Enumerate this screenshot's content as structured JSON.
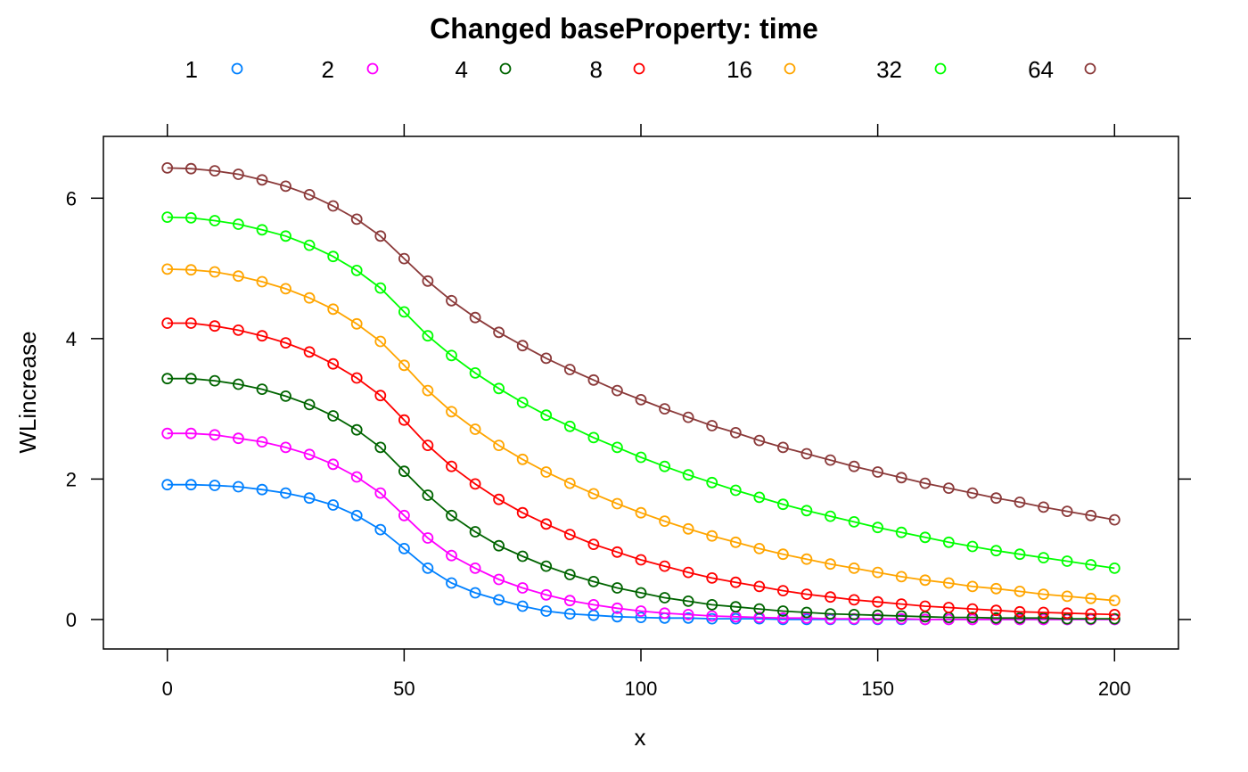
{
  "chart_data": {
    "type": "line",
    "title": "Changed baseProperty: time",
    "xlabel": "x",
    "ylabel": "WLincrease",
    "xlim": [
      -13.5,
      213.5
    ],
    "ylim": [
      -0.42,
      6.88
    ],
    "x_ticks": [
      0,
      50,
      100,
      150,
      200
    ],
    "y_ticks": [
      0,
      2,
      4,
      6
    ],
    "grid": false,
    "legend_position": "top",
    "x": [
      0,
      5,
      10,
      15,
      20,
      25,
      30,
      35,
      40,
      45,
      50,
      55,
      60,
      65,
      70,
      75,
      80,
      85,
      90,
      95,
      100,
      105,
      110,
      115,
      120,
      125,
      130,
      135,
      140,
      145,
      150,
      155,
      160,
      165,
      170,
      175,
      180,
      185,
      190,
      195,
      200
    ],
    "series": [
      {
        "name": "1",
        "color": "#0080ff",
        "values": [
          1.92,
          1.92,
          1.91,
          1.89,
          1.85,
          1.8,
          1.73,
          1.63,
          1.48,
          1.28,
          1.01,
          0.73,
          0.52,
          0.38,
          0.28,
          0.19,
          0.12,
          0.08,
          0.06,
          0.04,
          0.03,
          0.02,
          0.02,
          0.01,
          0.01,
          0.01,
          0.0,
          0.0,
          0.0,
          0.0,
          0.0,
          0.0,
          0.0,
          0.0,
          0.0,
          0.0,
          0.0,
          0.0,
          0.0,
          0.0,
          0.0
        ]
      },
      {
        "name": "2",
        "color": "#ff00ff",
        "values": [
          2.65,
          2.65,
          2.63,
          2.58,
          2.53,
          2.45,
          2.35,
          2.21,
          2.03,
          1.8,
          1.48,
          1.16,
          0.91,
          0.73,
          0.57,
          0.45,
          0.35,
          0.27,
          0.21,
          0.16,
          0.12,
          0.09,
          0.07,
          0.05,
          0.04,
          0.03,
          0.02,
          0.02,
          0.01,
          0.01,
          0.01,
          0.01,
          0.0,
          0.0,
          0.0,
          0.0,
          0.0,
          0.0,
          0.0,
          0.0,
          0.0
        ]
      },
      {
        "name": "4",
        "color": "#006400",
        "values": [
          3.43,
          3.43,
          3.4,
          3.35,
          3.28,
          3.18,
          3.06,
          2.9,
          2.7,
          2.45,
          2.11,
          1.77,
          1.48,
          1.25,
          1.05,
          0.9,
          0.76,
          0.64,
          0.54,
          0.45,
          0.38,
          0.31,
          0.26,
          0.21,
          0.18,
          0.15,
          0.12,
          0.1,
          0.08,
          0.07,
          0.06,
          0.05,
          0.04,
          0.03,
          0.03,
          0.02,
          0.02,
          0.02,
          0.01,
          0.01,
          0.01
        ]
      },
      {
        "name": "8",
        "color": "#ff0000",
        "values": [
          4.22,
          4.22,
          4.18,
          4.12,
          4.04,
          3.94,
          3.81,
          3.64,
          3.44,
          3.19,
          2.84,
          2.48,
          2.18,
          1.93,
          1.71,
          1.52,
          1.36,
          1.21,
          1.07,
          0.96,
          0.85,
          0.76,
          0.67,
          0.59,
          0.53,
          0.47,
          0.41,
          0.36,
          0.32,
          0.28,
          0.25,
          0.22,
          0.19,
          0.17,
          0.15,
          0.13,
          0.11,
          0.1,
          0.09,
          0.08,
          0.07
        ]
      },
      {
        "name": "16",
        "color": "#ffa500",
        "values": [
          4.99,
          4.98,
          4.95,
          4.89,
          4.81,
          4.71,
          4.58,
          4.42,
          4.21,
          3.96,
          3.62,
          3.26,
          2.96,
          2.71,
          2.48,
          2.28,
          2.1,
          1.94,
          1.79,
          1.65,
          1.52,
          1.4,
          1.29,
          1.19,
          1.1,
          1.01,
          0.93,
          0.86,
          0.79,
          0.73,
          0.67,
          0.61,
          0.56,
          0.52,
          0.47,
          0.44,
          0.4,
          0.36,
          0.33,
          0.3,
          0.27
        ]
      },
      {
        "name": "32",
        "color": "#00ff00",
        "values": [
          5.73,
          5.72,
          5.68,
          5.63,
          5.55,
          5.46,
          5.33,
          5.17,
          4.97,
          4.72,
          4.38,
          4.04,
          3.76,
          3.51,
          3.29,
          3.09,
          2.91,
          2.75,
          2.59,
          2.45,
          2.31,
          2.18,
          2.06,
          1.95,
          1.84,
          1.74,
          1.64,
          1.55,
          1.47,
          1.39,
          1.31,
          1.24,
          1.17,
          1.1,
          1.04,
          0.98,
          0.93,
          0.88,
          0.83,
          0.78,
          0.73
        ]
      },
      {
        "name": "64",
        "color": "#8b3a3a",
        "values": [
          6.43,
          6.42,
          6.39,
          6.34,
          6.26,
          6.17,
          6.05,
          5.89,
          5.7,
          5.46,
          5.14,
          4.82,
          4.54,
          4.3,
          4.09,
          3.9,
          3.72,
          3.56,
          3.41,
          3.26,
          3.13,
          3.0,
          2.88,
          2.76,
          2.66,
          2.55,
          2.45,
          2.36,
          2.27,
          2.18,
          2.1,
          2.02,
          1.94,
          1.87,
          1.8,
          1.73,
          1.67,
          1.6,
          1.54,
          1.48,
          1.42
        ]
      }
    ]
  }
}
